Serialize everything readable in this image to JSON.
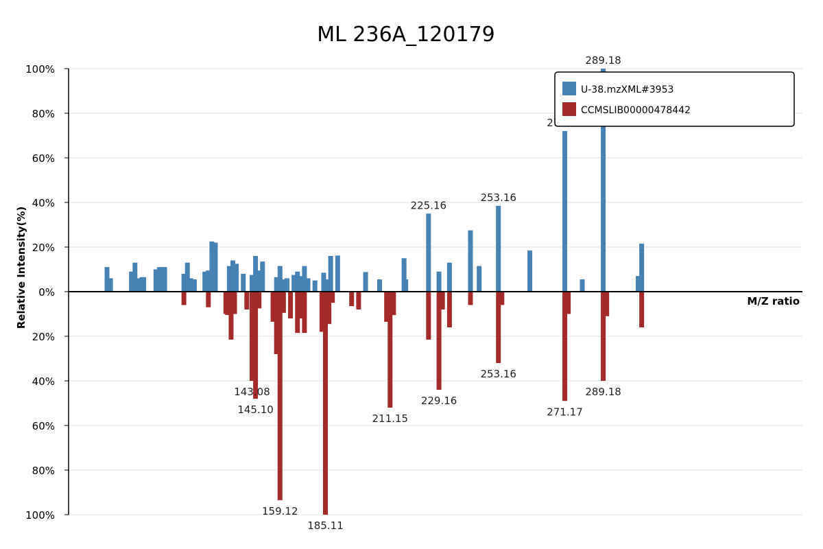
{
  "chart_data": {
    "type": "bar",
    "title": "ML 236A_120179",
    "ylabel": "Relative Intensity(%)",
    "xlabel": "M/Z ratio",
    "grid": true,
    "legend_position": "top-right",
    "y_ticks": [
      "100%",
      "80%",
      "60%",
      "40%",
      "20%",
      "0%",
      "20%",
      "40%",
      "60%",
      "80%",
      "100%"
    ],
    "xlim": [
      100,
      310
    ],
    "series": [
      {
        "name": "U-38.mzXML#3953",
        "color": "#4682b4",
        "direction": "up",
        "points": [
          {
            "mz": 111.0,
            "v": 11
          },
          {
            "mz": 112.0,
            "v": 6
          },
          {
            "mz": 118.0,
            "v": 9
          },
          {
            "mz": 119.0,
            "v": 13
          },
          {
            "mz": 120.0,
            "v": 6
          },
          {
            "mz": 121.0,
            "v": 6.5
          },
          {
            "mz": 121.5,
            "v": 6.5
          },
          {
            "mz": 125.0,
            "v": 10
          },
          {
            "mz": 126.0,
            "v": 11
          },
          {
            "mz": 127.0,
            "v": 11
          },
          {
            "mz": 127.5,
            "v": 11
          },
          {
            "mz": 133.0,
            "v": 8
          },
          {
            "mz": 134.0,
            "v": 13
          },
          {
            "mz": 135.0,
            "v": 6
          },
          {
            "mz": 136.0,
            "v": 5.5
          },
          {
            "mz": 139.0,
            "v": 9
          },
          {
            "mz": 140.0,
            "v": 9.5
          },
          {
            "mz": 141.0,
            "v": 22.5
          },
          {
            "mz": 142.0,
            "v": 22
          },
          {
            "mz": 146.0,
            "v": 11.5
          },
          {
            "mz": 147.0,
            "v": 14
          },
          {
            "mz": 148.0,
            "v": 12.5
          },
          {
            "mz": 150.0,
            "v": 8
          },
          {
            "mz": 152.5,
            "v": 7.5
          },
          {
            "mz": 153.5,
            "v": 16
          },
          {
            "mz": 154.5,
            "v": 9.5
          },
          {
            "mz": 155.5,
            "v": 13.5
          },
          {
            "mz": 159.5,
            "v": 6.5
          },
          {
            "mz": 160.5,
            "v": 11.5
          },
          {
            "mz": 161.5,
            "v": 5.5
          },
          {
            "mz": 162.5,
            "v": 6
          },
          {
            "mz": 164.5,
            "v": 7.5
          },
          {
            "mz": 165.5,
            "v": 9
          },
          {
            "mz": 166.5,
            "v": 7
          },
          {
            "mz": 167.5,
            "v": 11.5
          },
          {
            "mz": 168.5,
            "v": 6
          },
          {
            "mz": 170.5,
            "v": 5
          },
          {
            "mz": 173.0,
            "v": 8.5
          },
          {
            "mz": 174.0,
            "v": 5.5
          },
          {
            "mz": 175.0,
            "v": 16
          },
          {
            "mz": 177.0,
            "v": 16.2
          },
          {
            "mz": 185.0,
            "v": 8.8
          },
          {
            "mz": 189.0,
            "v": 5.5
          },
          {
            "mz": 196.0,
            "v": 15
          },
          {
            "mz": 196.5,
            "v": 5.5
          },
          {
            "mz": 203.0,
            "v": 35
          },
          {
            "mz": 206.0,
            "v": 9
          },
          {
            "mz": 209.0,
            "v": 13
          },
          {
            "mz": 215.0,
            "v": 27.5
          },
          {
            "mz": 217.5,
            "v": 11.5
          },
          {
            "mz": 223.0,
            "v": 38.5
          },
          {
            "mz": 232.0,
            "v": 18.5
          },
          {
            "mz": 242.0,
            "v": 72
          },
          {
            "mz": 247.0,
            "v": 5.5
          },
          {
            "mz": 253.0,
            "v": 100
          },
          {
            "mz": 263.0,
            "v": 7
          },
          {
            "mz": 264.0,
            "v": 21.5
          }
        ],
        "labels": [
          {
            "mz": 253.0,
            "v": 100,
            "text": "289.18"
          },
          {
            "mz": 242.0,
            "v": 72,
            "text": "271.17"
          },
          {
            "mz": 223.0,
            "v": 38.5,
            "text": "253.16"
          },
          {
            "mz": 203.0,
            "v": 35,
            "text": "225.16"
          }
        ]
      },
      {
        "name": "CCMSLIB00000478442",
        "color": "#a52a2a",
        "direction": "down",
        "points": [
          {
            "mz": 133.0,
            "v": 6
          },
          {
            "mz": 140.0,
            "v": 7
          },
          {
            "mz": 145.0,
            "v": 10
          },
          {
            "mz": 145.5,
            "v": 10.5
          },
          {
            "mz": 146.5,
            "v": 21.5
          },
          {
            "mz": 147.5,
            "v": 10
          },
          {
            "mz": 151.0,
            "v": 8
          },
          {
            "mz": 152.5,
            "v": 40
          },
          {
            "mz": 153.5,
            "v": 48
          },
          {
            "mz": 154.5,
            "v": 7.5
          },
          {
            "mz": 158.5,
            "v": 13.5
          },
          {
            "mz": 159.5,
            "v": 28
          },
          {
            "mz": 160.5,
            "v": 93.5
          },
          {
            "mz": 161.5,
            "v": 9.5
          },
          {
            "mz": 163.5,
            "v": 12
          },
          {
            "mz": 165.5,
            "v": 18.5
          },
          {
            "mz": 166.5,
            "v": 12
          },
          {
            "mz": 167.5,
            "v": 18.5
          },
          {
            "mz": 172.5,
            "v": 18
          },
          {
            "mz": 173.5,
            "v": 100
          },
          {
            "mz": 174.5,
            "v": 14.5
          },
          {
            "mz": 175.5,
            "v": 5
          },
          {
            "mz": 181.0,
            "v": 6.5
          },
          {
            "mz": 183.0,
            "v": 8
          },
          {
            "mz": 191.0,
            "v": 13.5
          },
          {
            "mz": 192.0,
            "v": 52
          },
          {
            "mz": 193.0,
            "v": 10.5
          },
          {
            "mz": 203.0,
            "v": 21.5
          },
          {
            "mz": 206.0,
            "v": 44
          },
          {
            "mz": 207.0,
            "v": 8
          },
          {
            "mz": 209.0,
            "v": 16
          },
          {
            "mz": 215.0,
            "v": 6
          },
          {
            "mz": 223.0,
            "v": 32
          },
          {
            "mz": 224.0,
            "v": 6
          },
          {
            "mz": 242.0,
            "v": 49
          },
          {
            "mz": 243.0,
            "v": 10
          },
          {
            "mz": 253.0,
            "v": 40
          },
          {
            "mz": 254.0,
            "v": 11
          },
          {
            "mz": 264.0,
            "v": 16
          }
        ],
        "labels": [
          {
            "mz": 173.5,
            "v": 100,
            "text": "185.11"
          },
          {
            "mz": 160.5,
            "v": 93.5,
            "text": "159.12"
          },
          {
            "mz": 192.0,
            "v": 52,
            "text": "211.15"
          },
          {
            "mz": 242.0,
            "v": 49,
            "text": "271.17"
          },
          {
            "mz": 153.5,
            "v": 48,
            "text": "145.10"
          },
          {
            "mz": 206.0,
            "v": 44,
            "text": "229.16"
          },
          {
            "mz": 152.5,
            "v": 40,
            "text": "143.08"
          },
          {
            "mz": 253.0,
            "v": 40,
            "text": "289.18"
          },
          {
            "mz": 223.0,
            "v": 32,
            "text": "253.16"
          }
        ]
      }
    ]
  }
}
